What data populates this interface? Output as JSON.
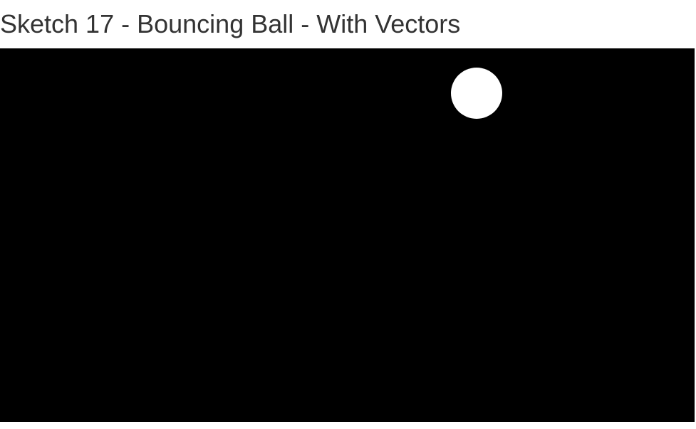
{
  "page": {
    "title": "Sketch 17 - Bouncing Ball - With Vectors"
  },
  "sketch": {
    "background_color": "#000000",
    "ball_color": "#ffffff"
  }
}
